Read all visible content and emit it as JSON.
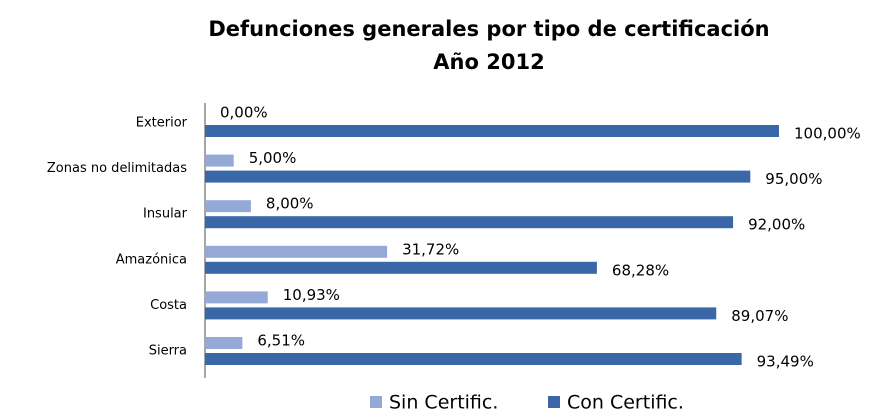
{
  "chart_data": {
    "type": "bar",
    "orientation": "horizontal",
    "title": "Defunciones generales por tipo de certificación",
    "subtitle": "Año 2012",
    "categories": [
      "Exterior",
      "Zonas no delimitadas",
      "Insular",
      "Amazónica",
      "Costa",
      "Sierra"
    ],
    "xlim": [
      0,
      100
    ],
    "series": [
      {
        "name": "Sin Certific.",
        "color": "#95a9d6",
        "values": [
          0,
          5,
          8,
          31.72,
          10.93,
          6.51
        ],
        "value_labels": [
          "0,00%",
          "5,00%",
          "8,00%",
          "31,72%",
          "10,93%",
          "6,51%"
        ]
      },
      {
        "name": "Con Certific.",
        "color": "#3a67a8",
        "values": [
          100,
          95,
          92,
          68.28,
          89.07,
          93.49
        ],
        "value_labels": [
          "100,00%",
          "95,00%",
          "92,00%",
          "68,28%",
          "89,07%",
          "93,49%"
        ]
      }
    ],
    "legend": "bottom"
  }
}
